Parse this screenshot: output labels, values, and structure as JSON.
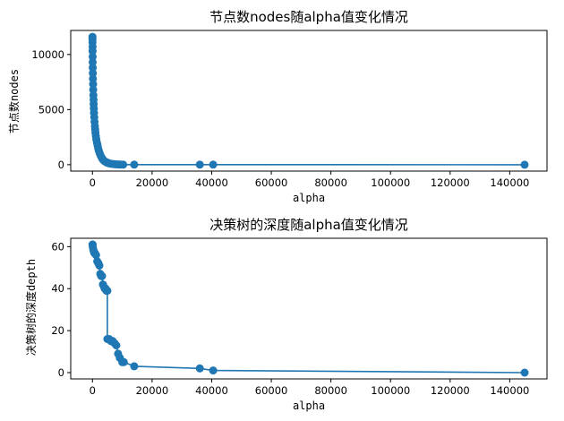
{
  "chart_data": [
    {
      "type": "line",
      "title": "节点数nodes随alpha值变化情况",
      "xlabel": "alpha",
      "ylabel": "节点数nodes",
      "xlim": [
        -7300,
        152500
      ],
      "ylim": [
        -580,
        12180
      ],
      "xticks": [
        0,
        20000,
        40000,
        60000,
        80000,
        100000,
        120000,
        140000
      ],
      "yticks": [
        0,
        5000,
        10000
      ],
      "grid": false,
      "marker": "circle",
      "color": "#1f77b4",
      "x": [
        0,
        5,
        10,
        20,
        30,
        50,
        70,
        100,
        130,
        160,
        200,
        250,
        300,
        350,
        400,
        460,
        520,
        600,
        700,
        800,
        900,
        1000,
        1150,
        1300,
        1500,
        1700,
        1900,
        2100,
        2400,
        2700,
        3000,
        3300,
        3600,
        4000,
        4400,
        4800,
        5200,
        5600,
        6000,
        6600,
        7200,
        7800,
        8400,
        9000,
        9500,
        10300,
        14000,
        36000,
        40500,
        145000
      ],
      "y": [
        11600,
        11400,
        11100,
        10700,
        10300,
        9800,
        9300,
        8800,
        8300,
        7800,
        7300,
        6800,
        6300,
        5900,
        5500,
        5100,
        4700,
        4300,
        3900,
        3500,
        3200,
        2900,
        2600,
        2300,
        2000,
        1750,
        1500,
        1280,
        1050,
        850,
        680,
        540,
        430,
        330,
        260,
        200,
        160,
        125,
        95,
        70,
        50,
        35,
        25,
        18,
        13,
        9,
        7,
        5,
        3,
        1
      ]
    },
    {
      "type": "line",
      "title": "决策树的深度随alpha值变化情况",
      "xlabel": "alpha",
      "ylabel": "决策树的深度depth",
      "xlim": [
        -7300,
        152500
      ],
      "ylim": [
        -3,
        64
      ],
      "xticks": [
        0,
        20000,
        40000,
        60000,
        80000,
        100000,
        120000,
        140000
      ],
      "yticks": [
        0,
        20,
        40,
        60
      ],
      "grid": false,
      "marker": "circle",
      "color": "#1f77b4",
      "x": [
        0,
        50,
        100,
        200,
        400,
        600,
        800,
        1200,
        1600,
        2000,
        2300,
        2600,
        2900,
        3200,
        3500,
        3800,
        4100,
        4400,
        4700,
        5000,
        5000,
        5600,
        6200,
        6800,
        7400,
        8000,
        8600,
        9200,
        10000,
        10500,
        14000,
        36000,
        40500,
        145000
      ],
      "y": [
        61,
        61,
        60,
        59,
        58,
        57,
        57,
        56,
        53,
        52,
        51,
        47,
        46,
        46,
        42,
        41,
        40,
        40,
        39,
        39,
        16,
        16,
        15,
        15,
        14,
        13,
        9,
        7,
        5,
        5,
        3,
        2,
        1,
        0
      ]
    }
  ]
}
